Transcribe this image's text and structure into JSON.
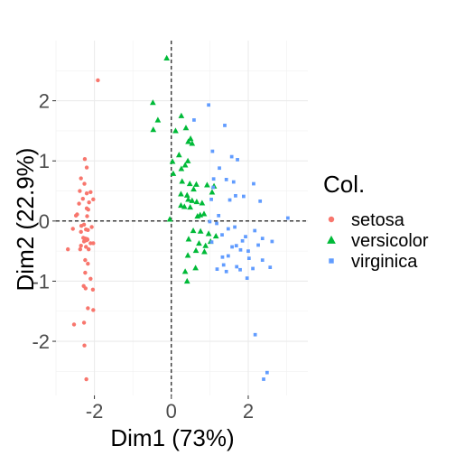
{
  "chart_data": {
    "type": "scatter",
    "xlabel": "Dim1 (73%)",
    "ylabel": "Dim2 (22.9%)",
    "xlim": [
      -3.0,
      3.55
    ],
    "ylim": [
      -2.9,
      3.0
    ],
    "x_ticks": [
      {
        "value": -2,
        "label": "-2"
      },
      {
        "value": 0,
        "label": "0"
      },
      {
        "value": 2,
        "label": "2"
      }
    ],
    "y_ticks": [
      {
        "value": -2,
        "label": "-2"
      },
      {
        "value": -1,
        "label": "-1"
      },
      {
        "value": 0,
        "label": "0"
      },
      {
        "value": 1,
        "label": "1"
      },
      {
        "value": 2,
        "label": "2"
      }
    ],
    "grid": true,
    "reference_lines": {
      "x": 0,
      "y": 0,
      "style": "dashed"
    },
    "legend": {
      "title": "Col.",
      "placement": "right",
      "entries": [
        {
          "name": "setosa",
          "color": "#F8766D",
          "shape": "circle"
        },
        {
          "name": "versicolor",
          "color": "#00BA38",
          "shape": "triangle"
        },
        {
          "name": "virginica",
          "color": "#619CFF",
          "shape": "square"
        }
      ]
    },
    "series": [
      {
        "name": "setosa",
        "color": "#F8766D",
        "shape": "circle",
        "points": [
          [
            -1.91,
            2.34
          ],
          [
            -2.25,
            1.03
          ],
          [
            -2.2,
            0.89
          ],
          [
            -2.35,
            0.71
          ],
          [
            -2.26,
            0.62
          ],
          [
            -2.38,
            0.5
          ],
          [
            -2.1,
            0.48
          ],
          [
            -2.2,
            0.46
          ],
          [
            -2.3,
            0.37
          ],
          [
            -2.03,
            0.36
          ],
          [
            -2.14,
            0.31
          ],
          [
            -2.4,
            0.29
          ],
          [
            -2.2,
            0.21
          ],
          [
            -2.16,
            0.19
          ],
          [
            -2.45,
            0.11
          ],
          [
            -2.48,
            0.09
          ],
          [
            -2.19,
            0.08
          ],
          [
            -2.27,
            -0.06
          ],
          [
            -2.34,
            -0.08
          ],
          [
            -2.07,
            -0.1
          ],
          [
            -2.56,
            -0.13
          ],
          [
            -2.22,
            -0.14
          ],
          [
            -2.17,
            -0.15
          ],
          [
            -2.35,
            -0.18
          ],
          [
            -2.29,
            -0.28
          ],
          [
            -2.24,
            -0.29
          ],
          [
            -2.19,
            -0.3
          ],
          [
            -2.18,
            -0.31
          ],
          [
            -2.21,
            -0.32
          ],
          [
            -2.27,
            -0.34
          ],
          [
            -2.1,
            -0.37
          ],
          [
            -2.03,
            -0.37
          ],
          [
            -2.35,
            -0.41
          ],
          [
            -2.22,
            -0.43
          ],
          [
            -2.15,
            -0.47
          ],
          [
            -2.69,
            -0.47
          ],
          [
            -2.37,
            -0.47
          ],
          [
            -2.24,
            -0.65
          ],
          [
            -2.17,
            -0.71
          ],
          [
            -2.24,
            -0.86
          ],
          [
            -2.1,
            -0.96
          ],
          [
            -2.28,
            -1.08
          ],
          [
            -2.23,
            -1.12
          ],
          [
            -2.04,
            -1.14
          ],
          [
            -2.17,
            -1.45
          ],
          [
            -2.03,
            -1.48
          ],
          [
            -2.27,
            -1.69
          ],
          [
            -2.53,
            -1.72
          ],
          [
            -2.26,
            -2.07
          ],
          [
            -2.21,
            -2.63
          ]
        ]
      },
      {
        "name": "versicolor",
        "color": "#00BA38",
        "shape": "triangle",
        "points": [
          [
            -0.12,
            2.71
          ],
          [
            -0.48,
            1.97
          ],
          [
            0.26,
            1.75
          ],
          [
            -0.35,
            1.68
          ],
          [
            -0.47,
            1.52
          ],
          [
            0.38,
            1.55
          ],
          [
            0.11,
            1.5
          ],
          [
            0.5,
            1.37
          ],
          [
            0.54,
            1.29
          ],
          [
            0.44,
            1.32
          ],
          [
            0.2,
            1.1
          ],
          [
            0.43,
            1.0
          ],
          [
            0.03,
            0.99
          ],
          [
            0.36,
            0.93
          ],
          [
            0.26,
            0.87
          ],
          [
            0.05,
            0.79
          ],
          [
            0.28,
            0.66
          ],
          [
            0.48,
            0.62
          ],
          [
            0.65,
            0.61
          ],
          [
            0.93,
            0.6
          ],
          [
            1.11,
            0.58
          ],
          [
            0.58,
            0.53
          ],
          [
            1.06,
            0.48
          ],
          [
            0.25,
            0.45
          ],
          [
            0.41,
            0.43
          ],
          [
            0.44,
            0.36
          ],
          [
            0.54,
            0.34
          ],
          [
            0.66,
            0.32
          ],
          [
            0.8,
            0.3
          ],
          [
            0.25,
            0.26
          ],
          [
            0.34,
            0.24
          ],
          [
            0.49,
            0.23
          ],
          [
            0.75,
            0.1
          ],
          [
            0.85,
            0.12
          ],
          [
            0.68,
            0.08
          ],
          [
            -0.04,
            0.03
          ],
          [
            0.57,
            -0.16
          ],
          [
            0.76,
            -0.17
          ],
          [
            0.97,
            -0.21
          ],
          [
            1.16,
            -0.25
          ],
          [
            0.45,
            -0.3
          ],
          [
            0.72,
            -0.37
          ],
          [
            0.89,
            -0.41
          ],
          [
            1.02,
            -0.34
          ],
          [
            0.64,
            -0.49
          ],
          [
            0.86,
            -0.51
          ],
          [
            0.43,
            -0.57
          ],
          [
            0.63,
            -0.78
          ],
          [
            0.36,
            -0.84
          ],
          [
            0.41,
            -1.0
          ]
        ]
      },
      {
        "name": "virginica",
        "color": "#619CFF",
        "shape": "square",
        "points": [
          [
            1.39,
            1.59
          ],
          [
            0.97,
            1.93
          ],
          [
            0.59,
            1.68
          ],
          [
            1.07,
            1.16
          ],
          [
            1.57,
            1.07
          ],
          [
            1.72,
            1.02
          ],
          [
            1.25,
            0.88
          ],
          [
            1.1,
            0.7
          ],
          [
            1.43,
            0.69
          ],
          [
            1.62,
            0.65
          ],
          [
            2.14,
            0.62
          ],
          [
            1.09,
            0.56
          ],
          [
            1.67,
            0.42
          ],
          [
            1.88,
            0.41
          ],
          [
            1.04,
            0.36
          ],
          [
            1.52,
            0.35
          ],
          [
            2.31,
            0.33
          ],
          [
            1.23,
            0.09
          ],
          [
            1.0,
            -0.01
          ],
          [
            1.18,
            -0.04
          ],
          [
            1.65,
            -0.1
          ],
          [
            1.48,
            -0.13
          ],
          [
            2.17,
            -0.16
          ],
          [
            3.03,
            0.05
          ],
          [
            1.32,
            -0.23
          ],
          [
            1.93,
            -0.26
          ],
          [
            2.37,
            -0.29
          ],
          [
            1.85,
            -0.33
          ],
          [
            1.05,
            -0.35
          ],
          [
            2.62,
            -0.34
          ],
          [
            2.26,
            -0.4
          ],
          [
            1.58,
            -0.43
          ],
          [
            1.69,
            -0.41
          ],
          [
            1.8,
            -0.48
          ],
          [
            2.0,
            -0.5
          ],
          [
            1.48,
            -0.58
          ],
          [
            1.33,
            -0.6
          ],
          [
            2.02,
            -0.62
          ],
          [
            2.37,
            -0.65
          ],
          [
            1.36,
            -0.73
          ],
          [
            1.7,
            -0.76
          ],
          [
            2.12,
            -0.79
          ],
          [
            2.57,
            -0.77
          ],
          [
            1.19,
            -0.8
          ],
          [
            1.79,
            -0.81
          ],
          [
            1.43,
            -0.84
          ],
          [
            1.97,
            -0.95
          ],
          [
            2.18,
            -1.89
          ],
          [
            2.49,
            -2.52
          ],
          [
            2.4,
            -2.63
          ]
        ]
      }
    ]
  }
}
